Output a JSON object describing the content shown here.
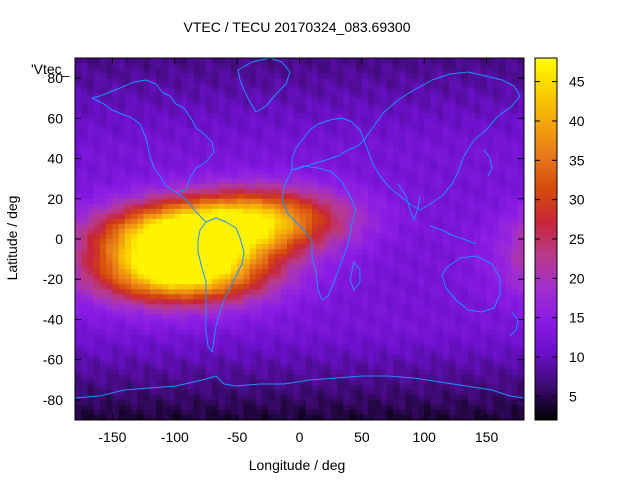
{
  "chart_data": {
    "type": "heatmap",
    "title": "VTEC / TECU 20170324_083.69300",
    "xlabel": "Longitude / deg",
    "ylabel": "Latitude / deg",
    "xlim": [
      -180,
      180
    ],
    "ylim": [
      -90,
      90
    ],
    "x_ticks": [
      -150,
      -100,
      -50,
      0,
      50,
      100,
      150
    ],
    "y_ticks": [
      -80,
      -60,
      -40,
      -20,
      0,
      20,
      40,
      60,
      80
    ],
    "colorbar": {
      "range": [
        2,
        48
      ],
      "ticks": [
        5,
        10,
        15,
        20,
        25,
        30,
        35,
        40,
        45
      ],
      "palette": [
        "#000000",
        "#3b0a6e",
        "#6a10c8",
        "#8a1be6",
        "#a02ecf",
        "#b83a8a",
        "#c8263a",
        "#d44a0a",
        "#e8781a",
        "#f2a40c",
        "#fbd000",
        "#ffff00"
      ]
    },
    "legend_label": "'Vtec_",
    "grid": false,
    "ionization_anomaly": {
      "peak_tec": 47,
      "crests": [
        {
          "lon": -95,
          "lat": 2,
          "tec": 45
        },
        {
          "lon": -95,
          "lat": -17,
          "tec": 47
        },
        {
          "lon": -30,
          "lat": 10,
          "tec": 37
        }
      ],
      "background_tec": 12,
      "polar_low_tec": 4
    }
  }
}
